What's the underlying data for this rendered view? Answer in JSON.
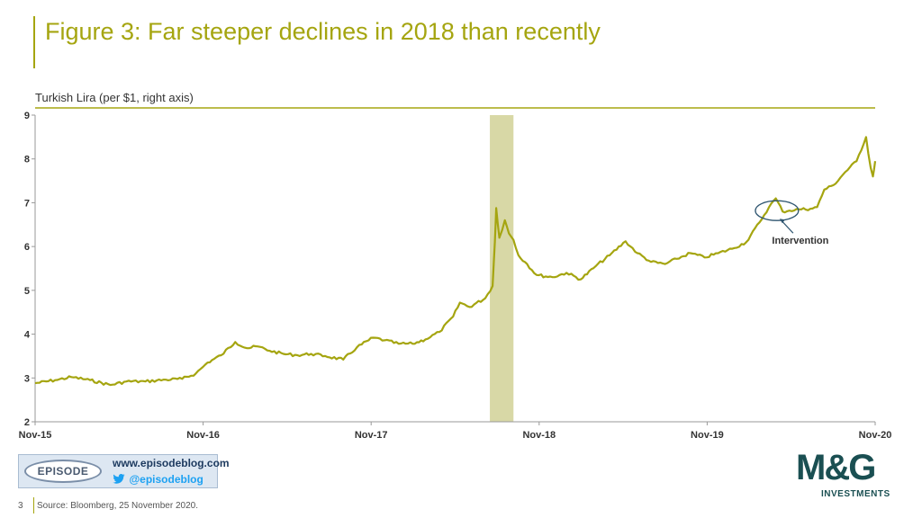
{
  "page": {
    "title": "Figure 3: Far steeper declines in 2018 than recently",
    "page_number": "3",
    "source": "Source: Bloomberg,  25 November  2020."
  },
  "branding": {
    "episode_label": "EPISODE",
    "blog_url": "www.episodeblog.com",
    "twitter_handle": "@episodeblog",
    "mg_name": "M&G",
    "mg_sub": "INVESTMENTS"
  },
  "colors": {
    "accent": "#a5a510",
    "series": "#a5a510",
    "shade": "#d8d8a6",
    "annotation": "#2e5570",
    "mg_brand": "#1a4f52",
    "twitter": "#1da1f2"
  },
  "chart_data": {
    "type": "line",
    "series_label": "Turkish Lira (per $1, right axis)",
    "x_ticks": [
      "Nov-15",
      "Nov-16",
      "Nov-17",
      "Nov-18",
      "Nov-19",
      "Nov-20"
    ],
    "ylim": [
      2,
      9
    ],
    "y_ticks": [
      "2",
      "3",
      "4",
      "5",
      "6",
      "7",
      "8",
      "9"
    ],
    "grid": false,
    "shaded_region": {
      "from": "2018-07-30",
      "to": "2018-09-20"
    },
    "annotation": {
      "label": "Intervention",
      "from": "2020-03-10",
      "to": "2020-06-05"
    },
    "series": [
      {
        "points": [
          [
            "2015-11-01",
            2.88
          ],
          [
            "2015-12-15",
            2.95
          ],
          [
            "2016-01-20",
            3.02
          ],
          [
            "2016-03-01",
            2.95
          ],
          [
            "2016-04-15",
            2.84
          ],
          [
            "2016-05-20",
            2.92
          ],
          [
            "2016-07-01",
            2.92
          ],
          [
            "2016-08-15",
            2.96
          ],
          [
            "2016-09-20",
            2.98
          ],
          [
            "2016-10-20",
            3.1
          ],
          [
            "2016-11-15",
            3.35
          ],
          [
            "2016-12-15",
            3.52
          ],
          [
            "2017-01-15",
            3.82
          ],
          [
            "2017-02-10",
            3.68
          ],
          [
            "2017-03-05",
            3.72
          ],
          [
            "2017-04-01",
            3.62
          ],
          [
            "2017-05-01",
            3.55
          ],
          [
            "2017-06-01",
            3.52
          ],
          [
            "2017-07-01",
            3.55
          ],
          [
            "2017-08-01",
            3.5
          ],
          [
            "2017-09-10",
            3.42
          ],
          [
            "2017-10-10",
            3.7
          ],
          [
            "2017-11-15",
            3.92
          ],
          [
            "2017-12-10",
            3.86
          ],
          [
            "2018-01-10",
            3.78
          ],
          [
            "2018-02-10",
            3.78
          ],
          [
            "2018-03-10",
            3.88
          ],
          [
            "2018-04-10",
            4.05
          ],
          [
            "2018-05-10",
            4.4
          ],
          [
            "2018-05-25",
            4.72
          ],
          [
            "2018-06-15",
            4.62
          ],
          [
            "2018-07-20",
            4.82
          ],
          [
            "2018-08-05",
            5.1
          ],
          [
            "2018-08-10",
            6.1
          ],
          [
            "2018-08-13",
            6.88
          ],
          [
            "2018-08-20",
            6.2
          ],
          [
            "2018-09-01",
            6.6
          ],
          [
            "2018-09-10",
            6.3
          ],
          [
            "2018-09-20",
            6.15
          ],
          [
            "2018-10-01",
            5.8
          ],
          [
            "2018-10-20",
            5.6
          ],
          [
            "2018-11-10",
            5.35
          ],
          [
            "2018-12-15",
            5.3
          ],
          [
            "2019-01-15",
            5.4
          ],
          [
            "2019-02-15",
            5.25
          ],
          [
            "2019-03-20",
            5.55
          ],
          [
            "2019-04-20",
            5.8
          ],
          [
            "2019-05-25",
            6.12
          ],
          [
            "2019-06-20",
            5.85
          ],
          [
            "2019-07-20",
            5.65
          ],
          [
            "2019-08-20",
            5.6
          ],
          [
            "2019-09-15",
            5.72
          ],
          [
            "2019-10-15",
            5.85
          ],
          [
            "2019-11-15",
            5.75
          ],
          [
            "2019-12-15",
            5.85
          ],
          [
            "2020-01-15",
            5.95
          ],
          [
            "2020-02-15",
            6.1
          ],
          [
            "2020-03-15",
            6.55
          ],
          [
            "2020-04-05",
            6.9
          ],
          [
            "2020-04-20",
            7.1
          ],
          [
            "2020-05-05",
            6.8
          ],
          [
            "2020-05-20",
            6.82
          ],
          [
            "2020-06-10",
            6.85
          ],
          [
            "2020-07-05",
            6.86
          ],
          [
            "2020-07-20",
            6.9
          ],
          [
            "2020-08-05",
            7.3
          ],
          [
            "2020-08-25",
            7.4
          ],
          [
            "2020-09-20",
            7.7
          ],
          [
            "2020-10-15",
            7.95
          ],
          [
            "2020-11-05",
            8.5
          ],
          [
            "2020-11-15",
            7.8
          ],
          [
            "2020-11-20",
            7.6
          ],
          [
            "2020-11-25",
            7.95
          ]
        ]
      }
    ]
  }
}
